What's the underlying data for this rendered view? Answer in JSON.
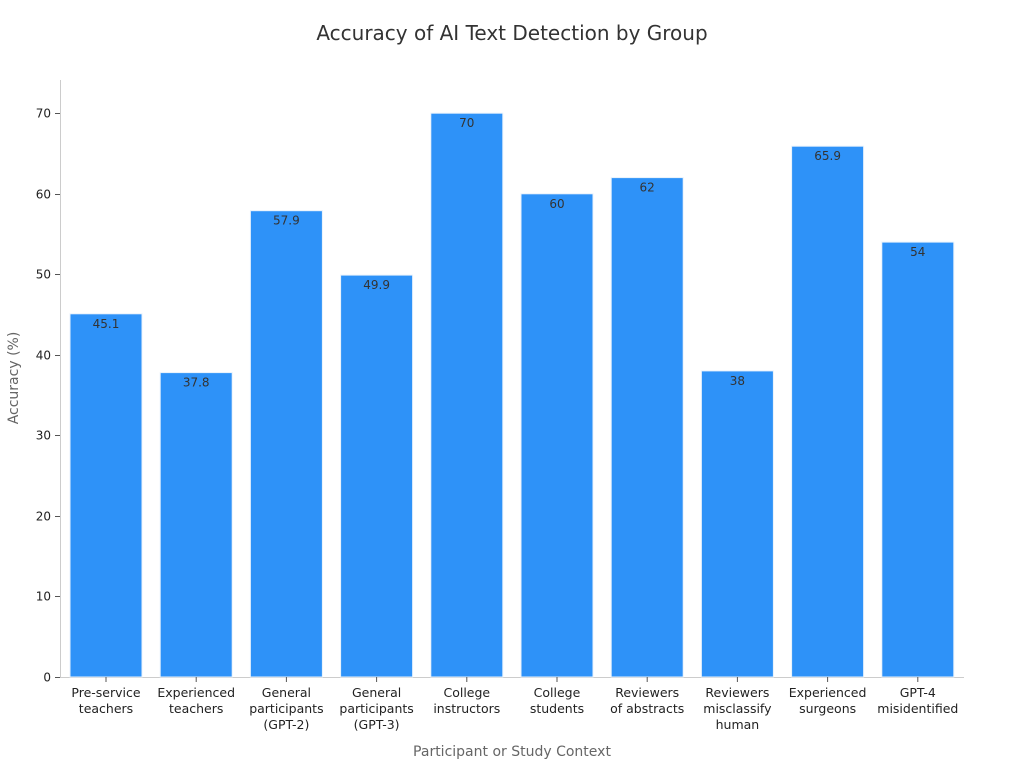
{
  "chart_data": {
    "type": "bar",
    "title": "Accuracy of AI Text Detection by Group",
    "xlabel": "Participant or Study Context",
    "ylabel": "Accuracy (%)",
    "ylim": [
      0,
      74
    ],
    "yticks": [
      0,
      10,
      20,
      30,
      40,
      50,
      60,
      70
    ],
    "grid": false,
    "bar_color": "#2e92f8",
    "categories": [
      [
        "Pre-service",
        "teachers"
      ],
      [
        "Experienced",
        "teachers"
      ],
      [
        "General",
        "participants",
        "(GPT-2)"
      ],
      [
        "General",
        "participants",
        "(GPT-3)"
      ],
      [
        "College",
        "instructors"
      ],
      [
        "College",
        "students"
      ],
      [
        "Reviewers",
        "of abstracts"
      ],
      [
        "Reviewers",
        "misclassify",
        "human"
      ],
      [
        "Experienced",
        "surgeons"
      ],
      [
        "GPT-4",
        "misidentified"
      ]
    ],
    "values": [
      45.1,
      37.8,
      57.9,
      49.9,
      70,
      60,
      62,
      38,
      65.9,
      54
    ],
    "value_labels": [
      "45.1",
      "37.8",
      "57.9",
      "49.9",
      "70",
      "60",
      "62",
      "38",
      "65.9",
      "54"
    ]
  }
}
